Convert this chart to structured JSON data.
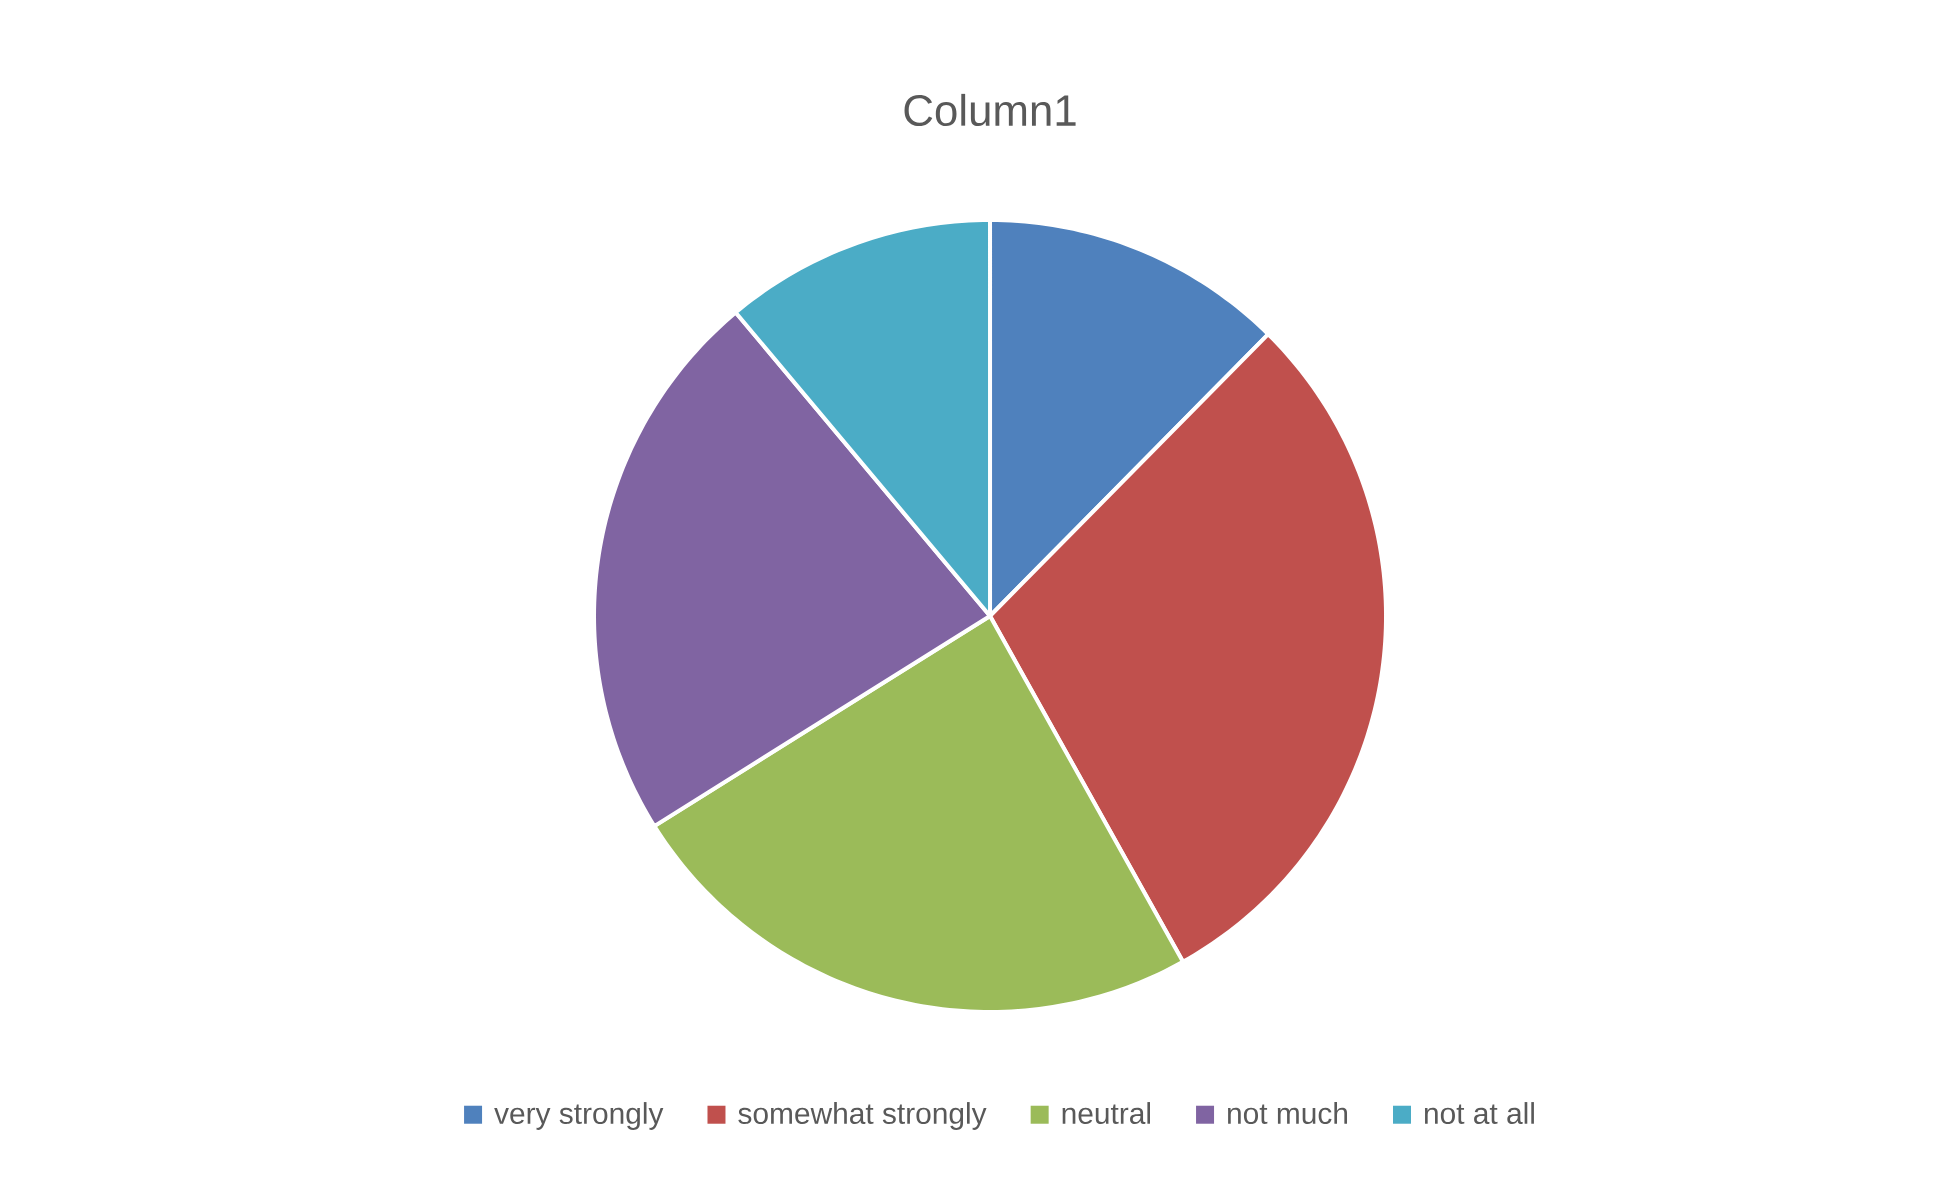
{
  "chart_data": {
    "type": "pie",
    "title": "Column1",
    "categories": [
      "very strongly",
      "somewhat strongly",
      "neutral",
      "not much",
      "not at all"
    ],
    "values": [
      12.4,
      29.5,
      24.2,
      22.8,
      11.1
    ],
    "colors": [
      "#4f81bd",
      "#c0504d",
      "#9bbb59",
      "#8064a2",
      "#4bacc6"
    ],
    "legend": "bottom"
  }
}
